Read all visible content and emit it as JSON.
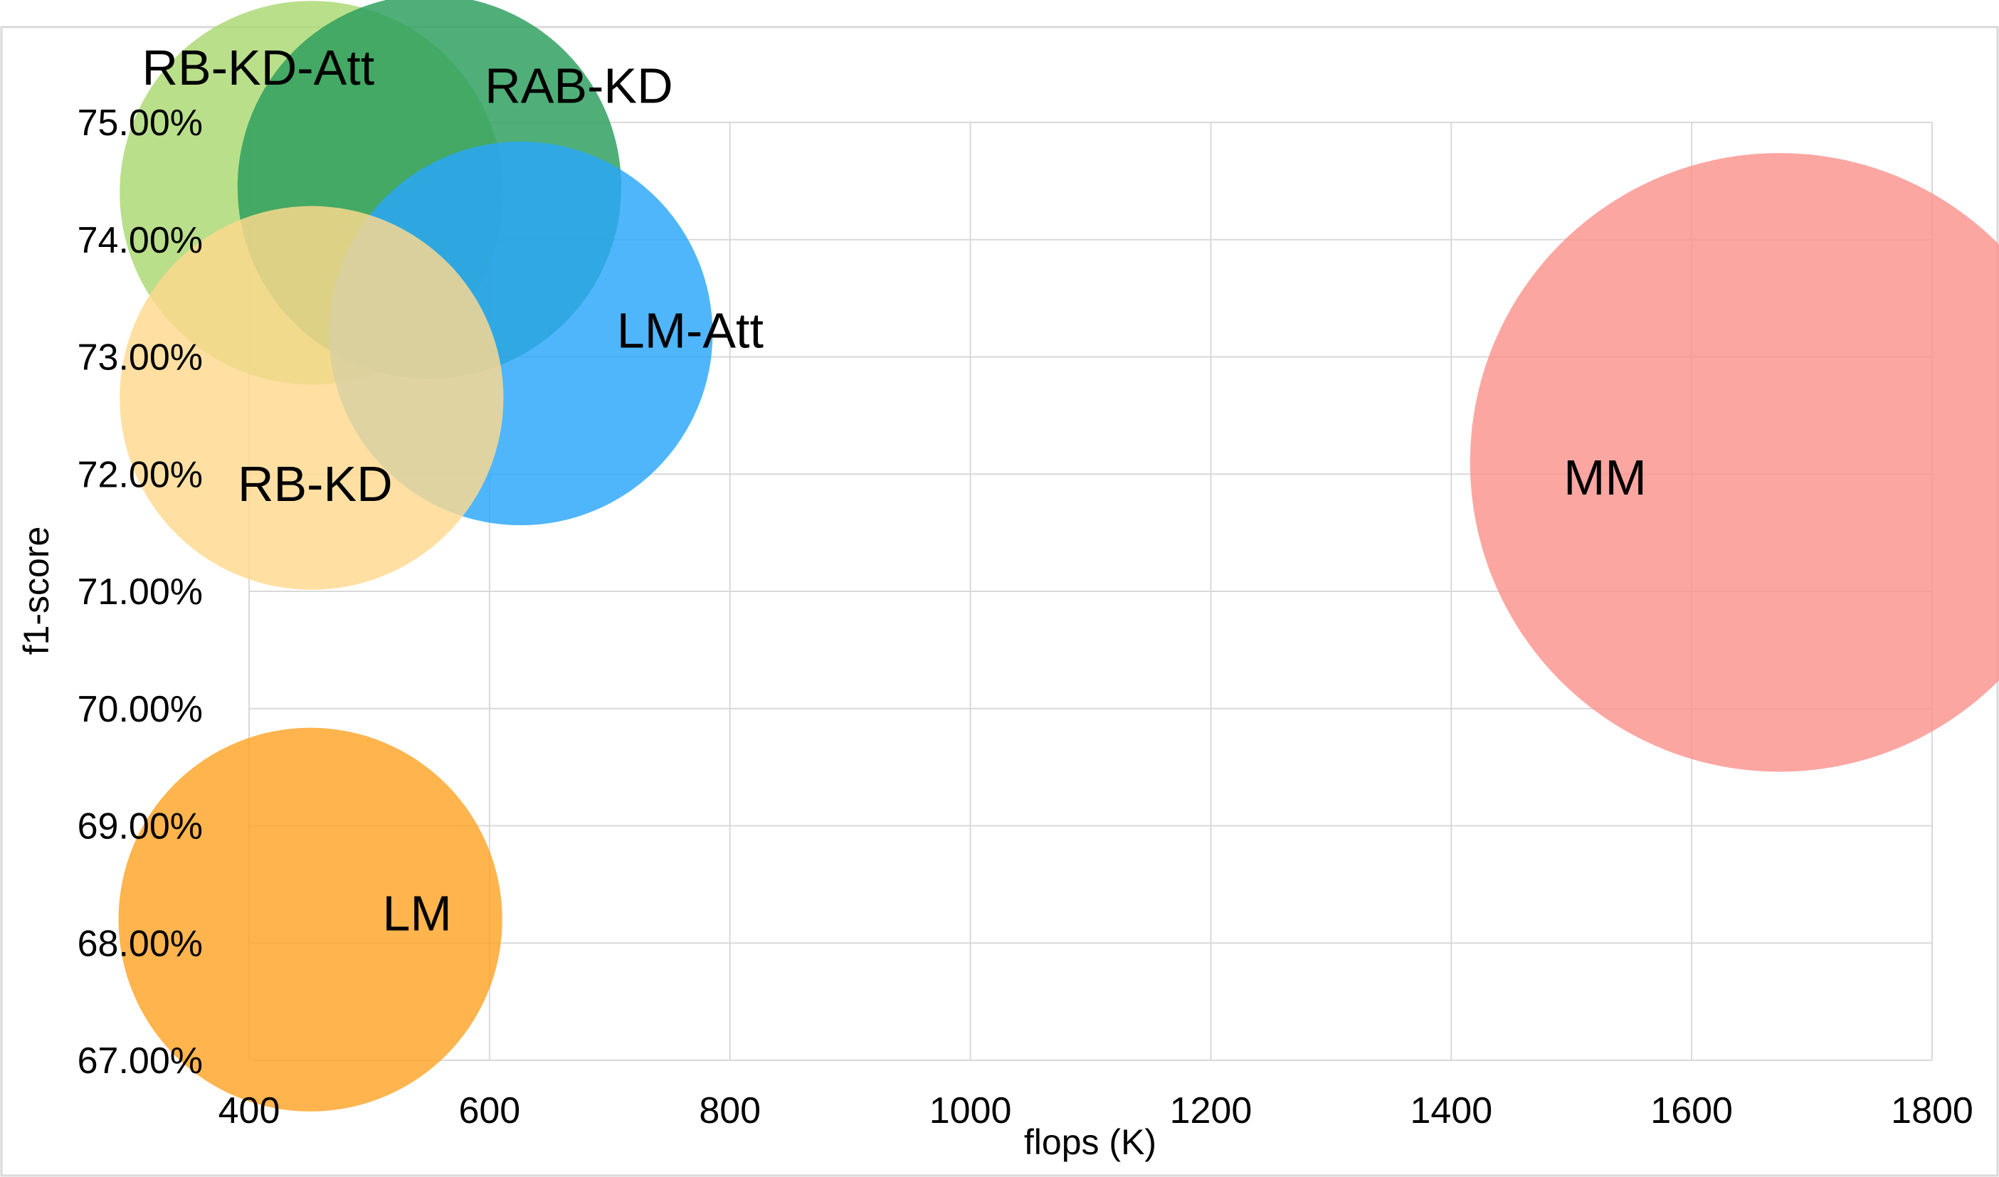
{
  "chart_data": {
    "type": "scatter",
    "subtype": "bubble",
    "title": "",
    "xlabel": "flops (K)",
    "ylabel": "f1-score",
    "xlim": [
      400,
      1800
    ],
    "ylim": [
      67,
      75
    ],
    "x_ticks": [
      "400",
      "600",
      "800",
      "1000",
      "1200",
      "1400",
      "1600",
      "1800"
    ],
    "y_ticks": [
      "67.00%",
      "68.00%",
      "69.00%",
      "70.00%",
      "71.00%",
      "72.00%",
      "73.00%",
      "74.00%",
      "75.00%"
    ],
    "grid": true,
    "legend": "none",
    "series": [
      {
        "name": "RB-KD-Att",
        "x": 452,
        "y": 74.4,
        "size": 98,
        "color": "#a9d870"
      },
      {
        "name": "RAB-KD",
        "x": 550,
        "y": 74.45,
        "size": 98,
        "color": "#2a9d5c"
      },
      {
        "name": "LM-Att",
        "x": 626,
        "y": 73.2,
        "size": 98,
        "color": "#29a6fb"
      },
      {
        "name": "RB-KD",
        "x": 452,
        "y": 72.65,
        "size": 98,
        "color": "#ffd98e"
      },
      {
        "name": "MM",
        "x": 1673,
        "y": 72.1,
        "size": 158,
        "color": "#fb938e"
      },
      {
        "name": "LM",
        "x": 451,
        "y": 68.2,
        "size": 98,
        "color": "#ffa326"
      }
    ]
  }
}
